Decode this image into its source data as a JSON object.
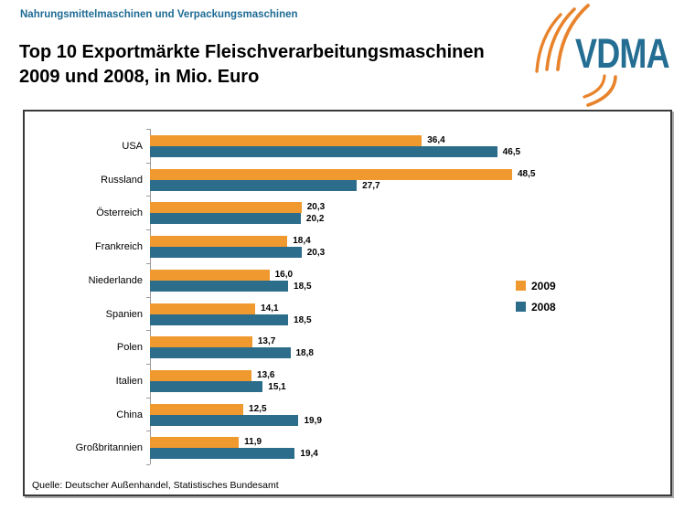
{
  "header": {
    "category_line": "Nahrungsmittelmaschinen und Verpackungsmaschinen",
    "title_line1": "Top 10 Exportmärkte Fleischverarbeitungsmaschinen",
    "title_line2": "2009 und 2008, in Mio. Euro",
    "logo_text": "VDMA"
  },
  "colors": {
    "series_2009_orange": "#EF992F",
    "series_2008_teal": "#2C6D8C",
    "heading_teal": "#1D6B94",
    "logo_blue": "#246D93",
    "logo_orange": "#E8832C",
    "axis_gray": "#9a9a9a"
  },
  "chart_data": {
    "type": "bar",
    "orientation": "horizontal",
    "title": "Top 10 Exportmärkte Fleischverarbeitungsmaschinen 2009 und 2008, in Mio. Euro",
    "unit": "Mio. Euro",
    "categories": [
      "USA",
      "Russland",
      "Österreich",
      "Frankreich",
      "Niederlande",
      "Spanien",
      "Polen",
      "Italien",
      "China",
      "Großbritannien"
    ],
    "series": [
      {
        "name": "2009",
        "color": "#EF992F",
        "values": [
          36.4,
          48.5,
          20.3,
          18.4,
          16.0,
          14.1,
          13.7,
          13.6,
          12.5,
          11.9
        ]
      },
      {
        "name": "2008",
        "color": "#2C6D8C",
        "values": [
          46.5,
          27.7,
          20.2,
          20.3,
          18.5,
          18.5,
          18.8,
          15.1,
          19.9,
          19.4
        ]
      }
    ],
    "xlim": [
      0,
      50
    ],
    "value_label_format": "german_decimal_comma_one_digit",
    "gridlines": false,
    "legend_position": "right-middle"
  },
  "footer": {
    "source": "Quelle: Deutscher Außenhandel, Statistisches Bundesamt"
  }
}
